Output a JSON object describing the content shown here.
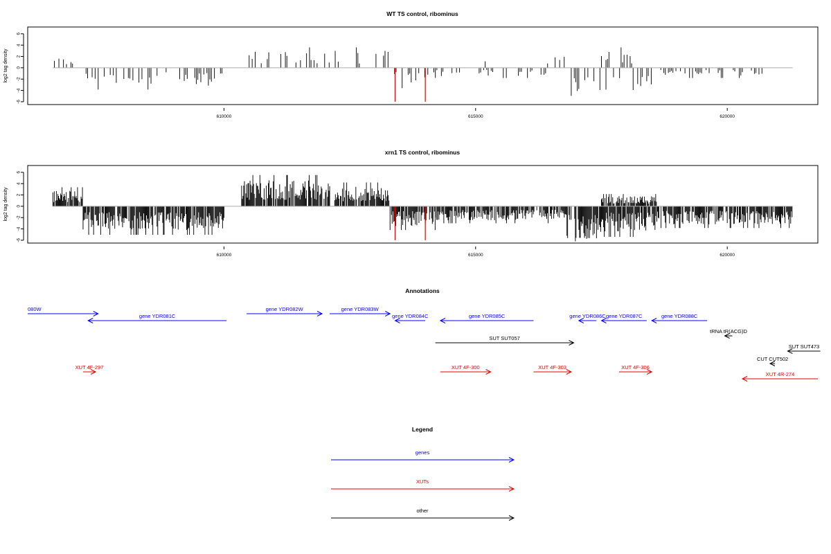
{
  "chart_data": [
    {
      "type": "bar",
      "title": "WT TS control, ribominus",
      "ylabel": "log2 tag density",
      "xlabel": "",
      "xlim": [
        606100,
        621800
      ],
      "ylim": [
        -6.5,
        7.2
      ],
      "xticks": [
        "610000",
        "615000",
        "620000"
      ],
      "yticks": [
        "6",
        "4",
        "2",
        "0",
        "-2",
        "-4",
        "-6"
      ],
      "data_range": [
        606600,
        621300
      ],
      "density": "sparse",
      "segments": [
        {
          "range": [
            606600,
            607100
          ],
          "sign": 1,
          "amp": 1.8
        },
        {
          "range": [
            607200,
            610000
          ],
          "sign": -1,
          "amp": 3.2
        },
        {
          "range": [
            610500,
            613300
          ],
          "sign": 1,
          "amp": 3.0
        },
        {
          "range": [
            613300,
            614200
          ],
          "sign": -1,
          "amp": 3.0
        },
        {
          "range": [
            614200,
            616400
          ],
          "sign": -1,
          "amp": 1.5
        },
        {
          "range": [
            615100,
            615200
          ],
          "sign": 1,
          "amp": 2.6
        },
        {
          "range": [
            616400,
            616900
          ],
          "sign": 1,
          "amp": 2.2
        },
        {
          "range": [
            616900,
            617500
          ],
          "sign": -1,
          "amp": 5.5
        },
        {
          "range": [
            617500,
            618500
          ],
          "sign": -1,
          "amp": 4.0
        },
        {
          "range": [
            617500,
            618300
          ],
          "sign": 1,
          "amp": 3.0
        },
        {
          "range": [
            618500,
            620700
          ],
          "sign": -1,
          "amp": 1.5
        }
      ],
      "highlight": [
        {
          "x": 613400,
          "y": -6.0,
          "color": "#e00000"
        },
        {
          "x": 614000,
          "y": -6.0,
          "color": "#e00000"
        }
      ]
    },
    {
      "type": "bar",
      "title": "xrn1 TS control, ribominus",
      "ylabel": "log2 tag density",
      "xlabel": "",
      "xlim": [
        606100,
        621800
      ],
      "ylim": [
        -6.5,
        7.2
      ],
      "xticks": [
        "610000",
        "615000",
        "620000"
      ],
      "yticks": [
        "6",
        "4",
        "2",
        "0",
        "-2",
        "-4",
        "-6"
      ],
      "data_range": [
        606600,
        621300
      ],
      "density": "dense",
      "segments": [
        {
          "range": [
            606600,
            607200
          ],
          "sign": 1,
          "amp": 2.8
        },
        {
          "range": [
            607200,
            610000
          ],
          "sign": -1,
          "amp": 4.2
        },
        {
          "range": [
            610350,
            612100
          ],
          "sign": 1,
          "amp": 4.6
        },
        {
          "range": [
            612200,
            613300
          ],
          "sign": 1,
          "amp": 3.5
        },
        {
          "range": [
            613300,
            614200
          ],
          "sign": -1,
          "amp": 3.5
        },
        {
          "range": [
            614200,
            616800
          ],
          "sign": -1,
          "amp": 2.5
        },
        {
          "range": [
            616800,
            617500
          ],
          "sign": -1,
          "amp": 5.8
        },
        {
          "range": [
            617500,
            618600
          ],
          "sign": -1,
          "amp": 4.5
        },
        {
          "range": [
            617500,
            618600
          ],
          "sign": 1,
          "amp": 1.8
        },
        {
          "range": [
            618600,
            621300
          ],
          "sign": -1,
          "amp": 3.2
        }
      ],
      "highlight": [
        {
          "x": 613400,
          "y": -6.0,
          "color": "#e00000"
        },
        {
          "x": 614000,
          "y": -6.0,
          "color": "#e00000"
        }
      ]
    }
  ],
  "annotations": {
    "title": "Annotations",
    "xlim": [
      606100,
      621800
    ],
    "features": [
      {
        "label": "080W",
        "start": 606100,
        "end": 607500,
        "row": 0,
        "color": "#0000ff"
      },
      {
        "label": "gene YDR081C",
        "start": 610050,
        "end": 607300,
        "row": 1,
        "color": "#0000ff"
      },
      {
        "label": "gene YDR082W",
        "start": 610450,
        "end": 611950,
        "row": 0,
        "color": "#0000ff"
      },
      {
        "label": "gene YDR083W",
        "start": 612100,
        "end": 613300,
        "row": 0,
        "color": "#0000ff"
      },
      {
        "label": "gene YDR084C",
        "start": 614000,
        "end": 613400,
        "row": 1,
        "color": "#0000ff"
      },
      {
        "label": "gene YDR085C",
        "start": 616150,
        "end": 614300,
        "row": 1,
        "color": "#0000ff"
      },
      {
        "label": "gene YDR086C",
        "start": 617400,
        "end": 617050,
        "row": 1,
        "color": "#0000ff"
      },
      {
        "label": "gene YDR087C",
        "start": 618400,
        "end": 617500,
        "row": 1,
        "color": "#0000ff"
      },
      {
        "label": "gene YDR088C",
        "start": 619600,
        "end": 618500,
        "row": 1,
        "color": "#0000ff"
      },
      {
        "label": "SUT SUT057",
        "start": 614200,
        "end": 616950,
        "row": 3,
        "color": "#000000"
      },
      {
        "label": "tRNA tR(ACG)D",
        "start": 620100,
        "end": 619950,
        "row": 2,
        "color": "#000000"
      },
      {
        "label": "SUT SUT473",
        "start": 621850,
        "end": 621200,
        "row": 4,
        "color": "#000000"
      },
      {
        "label": "CUT CUT502",
        "start": 620950,
        "end": 620850,
        "row": 5,
        "color": "#000000"
      },
      {
        "label": "XUT 4F-297",
        "start": 607200,
        "end": 607450,
        "row": 6,
        "color": "#e00000"
      },
      {
        "label": "XUT 4F-300",
        "start": 614300,
        "end": 615300,
        "row": 6,
        "color": "#e00000"
      },
      {
        "label": "XUT 4F-303",
        "start": 616150,
        "end": 616900,
        "row": 6,
        "color": "#e00000"
      },
      {
        "label": "XUT 4F-306",
        "start": 617850,
        "end": 618500,
        "row": 6,
        "color": "#e00000"
      },
      {
        "label": "XUT 4R-274",
        "start": 621800,
        "end": 620300,
        "row": 7,
        "color": "#e00000"
      }
    ]
  },
  "legend": {
    "title": "Legend",
    "items": [
      {
        "label": "genes",
        "color": "#0000ff"
      },
      {
        "label": "XUTs",
        "color": "#e00000"
      },
      {
        "label": "other",
        "color": "#000000"
      }
    ]
  }
}
